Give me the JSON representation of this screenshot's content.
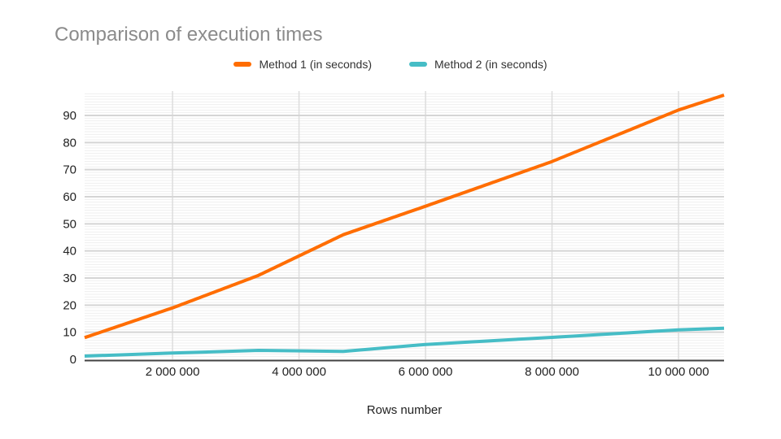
{
  "chart": {
    "title": "Comparison of execution times",
    "title_color": "#8b8b8b",
    "x_axis_title": "Rows number",
    "legend": [
      {
        "label": "Method 1 (in seconds)",
        "color": "#ff6d01"
      },
      {
        "label": "Method 2 (in seconds)",
        "color": "#46bdc6"
      }
    ]
  },
  "chart_data": {
    "type": "line",
    "title": "Comparison of execution times",
    "xlabel": "Rows number",
    "ylabel": "",
    "xlim": [
      610000,
      10720000
    ],
    "ylim": [
      0,
      99
    ],
    "y_ticks": [
      0,
      10,
      20,
      30,
      40,
      50,
      60,
      70,
      80,
      90
    ],
    "x_ticks": [
      {
        "value": 2000000,
        "label": "2 000 000"
      },
      {
        "value": 4000000,
        "label": "4 000 000"
      },
      {
        "value": 6000000,
        "label": "6 000 000"
      },
      {
        "value": 8000000,
        "label": "8 000 000"
      },
      {
        "value": 10000000,
        "label": "10 000 000"
      }
    ],
    "grid": {
      "h_major": true,
      "h_minor_step": 1,
      "v_major": true
    },
    "legend_position": "top",
    "colors": {
      "axis_line": "#424242",
      "tick_label": "#222222",
      "h_major_grid": "#d5d5d5",
      "h_minor_grid": "#efefef",
      "v_grid": "#dddddd"
    },
    "series": [
      {
        "name": "Method 1 (in seconds)",
        "color": "#ff6d01",
        "points": [
          [
            610000,
            8
          ],
          [
            2000000,
            19
          ],
          [
            3360000,
            31
          ],
          [
            4700000,
            46
          ],
          [
            6000000,
            56.5
          ],
          [
            8000000,
            73
          ],
          [
            10000000,
            92
          ],
          [
            10720000,
            97.5
          ]
        ]
      },
      {
        "name": "Method 2 (in seconds)",
        "color": "#46bdc6",
        "points": [
          [
            610000,
            1.2
          ],
          [
            2000000,
            2.3
          ],
          [
            3360000,
            3.3
          ],
          [
            4700000,
            2.9
          ],
          [
            6000000,
            5.5
          ],
          [
            8000000,
            8.1
          ],
          [
            10000000,
            10.9
          ],
          [
            10720000,
            11.5
          ]
        ]
      }
    ]
  }
}
